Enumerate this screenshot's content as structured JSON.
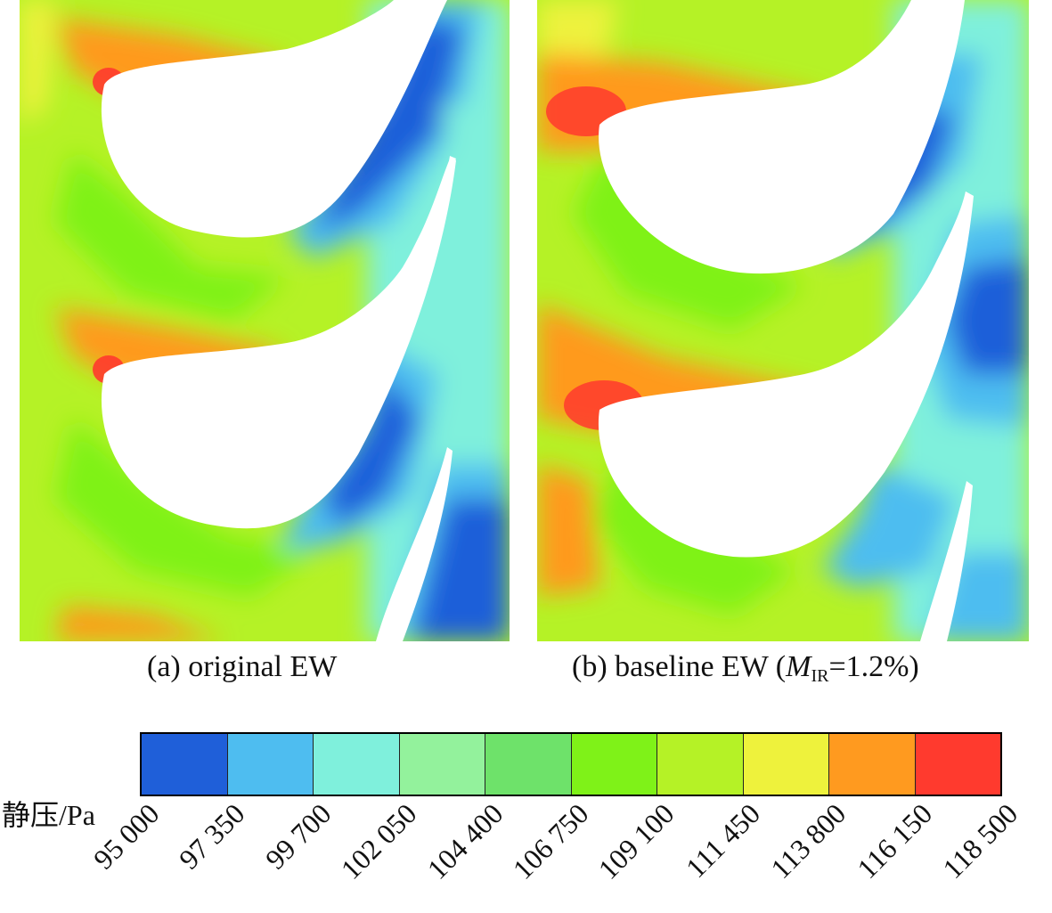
{
  "panels": [
    {
      "caption": "(a) original EW"
    },
    {
      "caption_prefix": "(b) baseline EW (",
      "caption_var": "M",
      "caption_sub": "IR",
      "caption_suffix": "=1.2%)"
    }
  ],
  "colorbar": {
    "label": "静压/Pa",
    "colors": [
      "#1f5fd9",
      "#4ebdf0",
      "#7ff0dc",
      "#93f29c",
      "#6ee26a",
      "#7ff218",
      "#b5f226",
      "#eef23c",
      "#ff9a1f",
      "#ff3a2e"
    ],
    "ticks": [
      "95 000",
      "97 350",
      "99 700",
      "102 050",
      "104 400",
      "106 750",
      "109 100",
      "111 450",
      "113 800",
      "116 150",
      "118 500"
    ]
  }
}
